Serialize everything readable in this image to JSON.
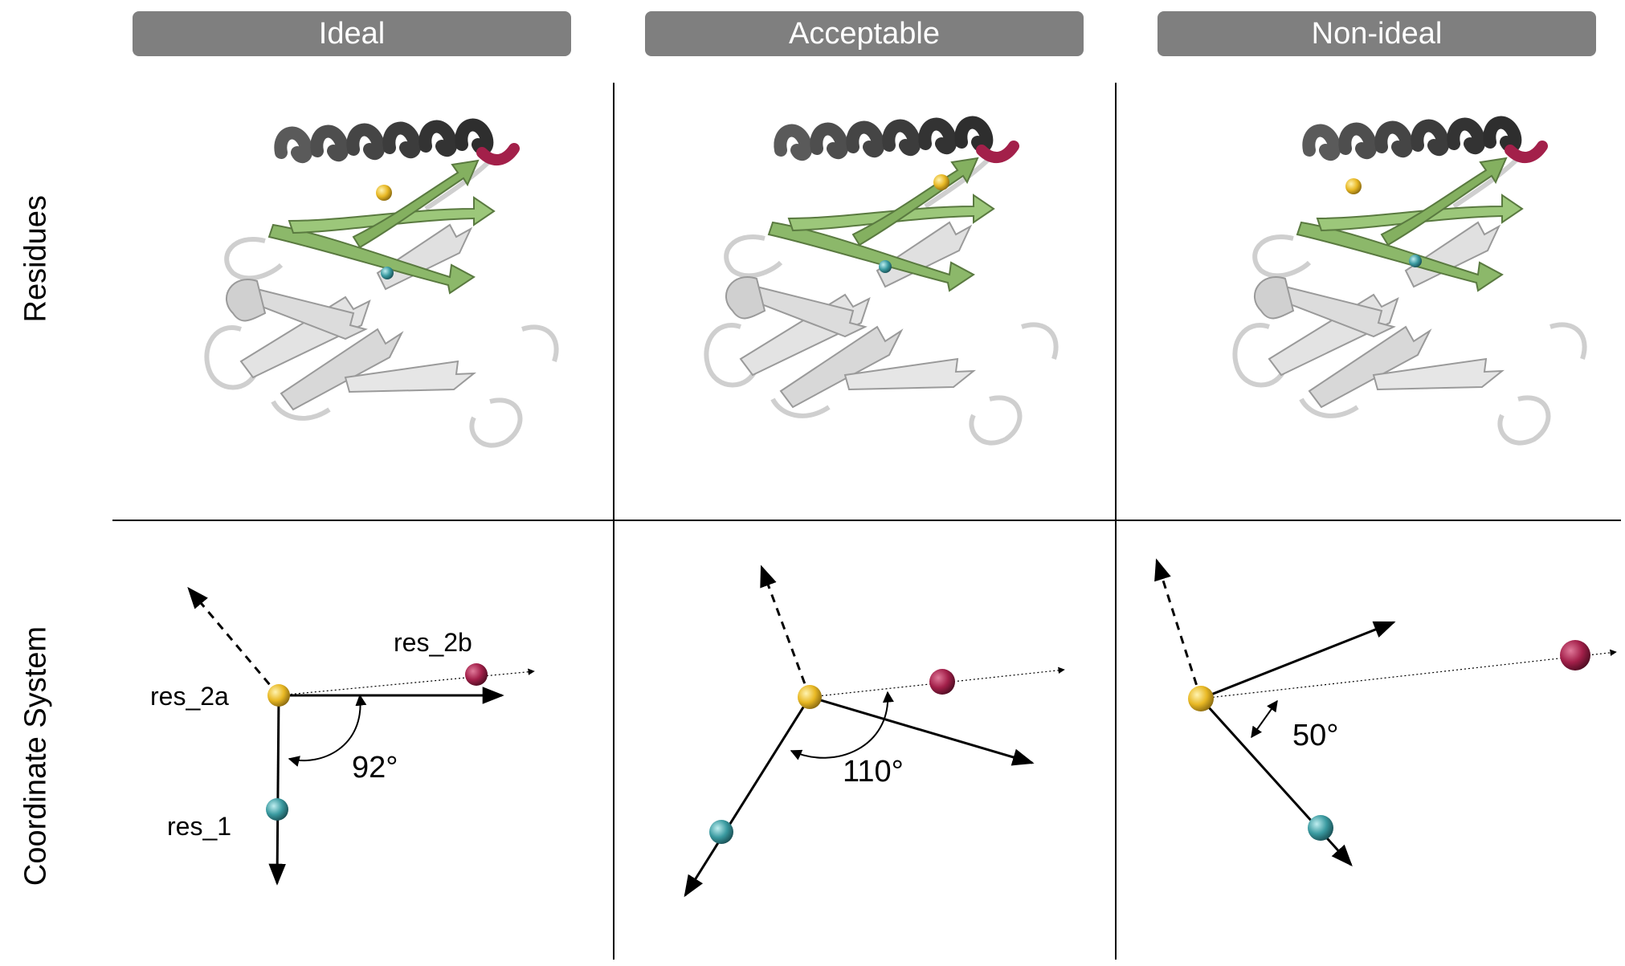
{
  "columns": [
    {
      "header": "Ideal",
      "angle_label": "92°"
    },
    {
      "header": "Acceptable",
      "angle_label": "110°"
    },
    {
      "header": "Non-ideal",
      "angle_label": "50°"
    }
  ],
  "rows": {
    "residues": "Residues",
    "coordinate_system": "Coordinate System"
  },
  "labels": {
    "res_2a": "res_2a",
    "res_2b": "res_2b",
    "res_1": "res_1"
  },
  "colors": {
    "header_bg": "#7f7f7f",
    "helix": "#3a3a3a",
    "sheet_green": "#8cb86a",
    "coil": "#d9d9d9",
    "res_2a": "#e8b824",
    "res_2b": "#a3204a",
    "res_1": "#3a9aa0"
  }
}
